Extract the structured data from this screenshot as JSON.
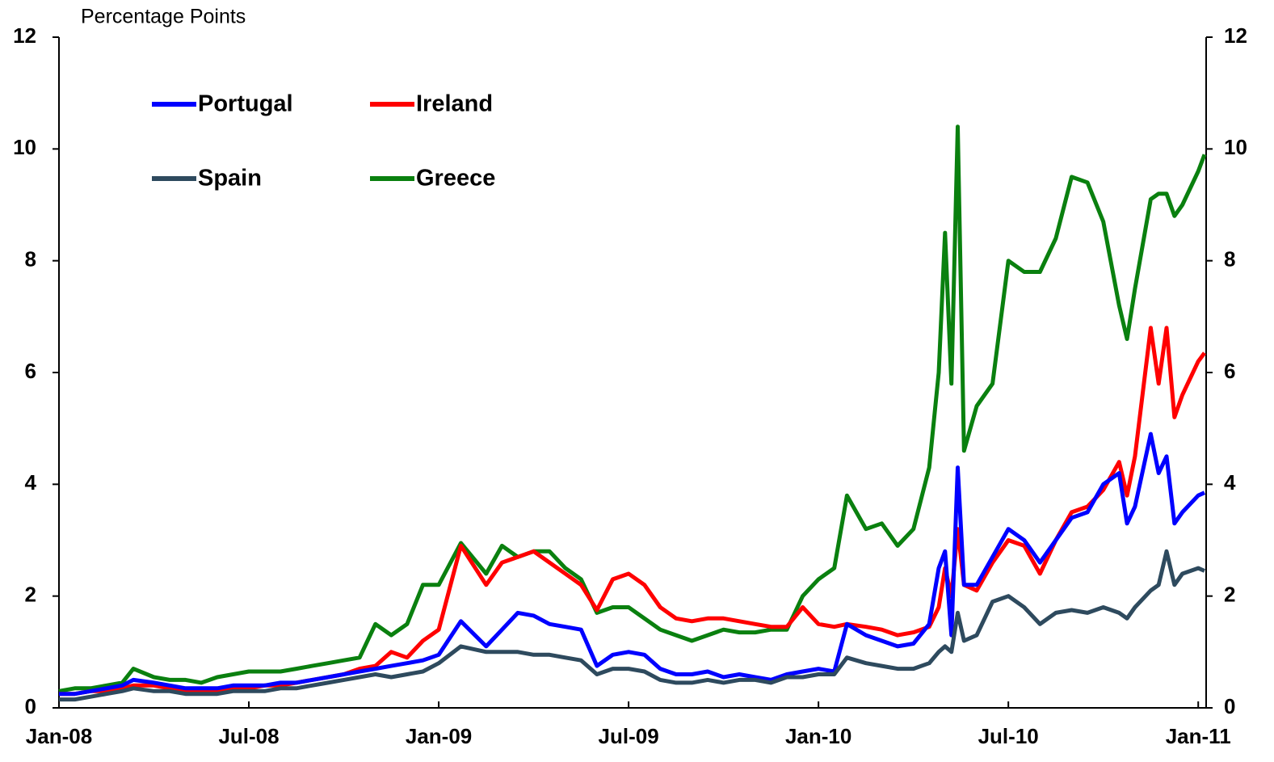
{
  "chart_data": {
    "type": "line",
    "ylabel": "Percentage Points",
    "x": [
      0,
      0.5,
      1,
      1.5,
      2,
      2.35,
      3,
      3.5,
      4,
      4.5,
      5,
      5.5,
      6,
      6.5,
      7,
      7.5,
      8,
      8.5,
      9,
      9.5,
      10,
      10.5,
      11,
      11.5,
      12,
      12.7,
      13.5,
      14,
      14.5,
      15,
      15.5,
      16,
      16.5,
      17,
      17.5,
      18,
      18.5,
      19,
      19.5,
      20,
      20.5,
      21,
      21.5,
      22,
      22.5,
      23,
      23.5,
      24,
      24.5,
      24.9,
      25.5,
      26,
      26.5,
      27,
      27.5,
      27.8,
      28,
      28.2,
      28.4,
      28.6,
      29,
      29.5,
      30,
      30.5,
      31,
      31.5,
      32,
      32.5,
      33,
      33.5,
      33.75,
      34,
      34.5,
      34.75,
      35,
      35.25,
      35.5,
      36,
      36.2
    ],
    "xlim": [
      0,
      36.25
    ],
    "xticks": [
      {
        "value": 0,
        "label": "Jan-08"
      },
      {
        "value": 6,
        "label": "Jul-08"
      },
      {
        "value": 12,
        "label": "Jan-09"
      },
      {
        "value": 18,
        "label": "Jul-09"
      },
      {
        "value": 24,
        "label": "Jan-10"
      },
      {
        "value": 30,
        "label": "Jul-10"
      },
      {
        "value": 36,
        "label": "Jan-11"
      }
    ],
    "ylim": [
      0,
      12
    ],
    "yticks": [
      0,
      2,
      4,
      6,
      8,
      10,
      12
    ],
    "y2lim": [
      0,
      12
    ],
    "y2ticks": [
      0,
      2,
      4,
      6,
      8,
      10,
      12
    ],
    "grid": false,
    "legend": "upper left",
    "series": [
      {
        "name": "Portugal",
        "color": "#0000ff",
        "values": [
          0.25,
          0.25,
          0.3,
          0.35,
          0.4,
          0.5,
          0.45,
          0.4,
          0.35,
          0.35,
          0.35,
          0.4,
          0.4,
          0.4,
          0.45,
          0.45,
          0.5,
          0.55,
          0.6,
          0.65,
          0.7,
          0.75,
          0.8,
          0.85,
          0.95,
          1.55,
          1.1,
          1.4,
          1.7,
          1.65,
          1.5,
          1.45,
          1.4,
          0.75,
          0.95,
          1.0,
          0.95,
          0.7,
          0.6,
          0.6,
          0.65,
          0.55,
          0.6,
          0.55,
          0.5,
          0.6,
          0.65,
          0.7,
          0.65,
          1.5,
          1.3,
          1.2,
          1.1,
          1.15,
          1.5,
          2.5,
          2.8,
          1.3,
          4.3,
          2.2,
          2.2,
          2.7,
          3.2,
          3.0,
          2.6,
          3.0,
          3.4,
          3.5,
          4.0,
          4.2,
          3.3,
          3.6,
          4.9,
          4.2,
          4.5,
          3.3,
          3.5,
          3.8,
          3.85
        ]
      },
      {
        "name": "Ireland",
        "color": "#ff0000",
        "values": [
          0.25,
          0.25,
          0.3,
          0.3,
          0.35,
          0.4,
          0.4,
          0.35,
          0.3,
          0.3,
          0.3,
          0.35,
          0.35,
          0.4,
          0.4,
          0.45,
          0.5,
          0.55,
          0.6,
          0.7,
          0.75,
          1.0,
          0.9,
          1.2,
          1.4,
          2.9,
          2.2,
          2.6,
          2.7,
          2.8,
          2.6,
          2.4,
          2.2,
          1.75,
          2.3,
          2.4,
          2.2,
          1.8,
          1.6,
          1.55,
          1.6,
          1.6,
          1.55,
          1.5,
          1.45,
          1.45,
          1.8,
          1.5,
          1.45,
          1.5,
          1.45,
          1.4,
          1.3,
          1.35,
          1.45,
          1.8,
          2.5,
          2.0,
          3.2,
          2.2,
          2.1,
          2.6,
          3.0,
          2.9,
          2.4,
          3.0,
          3.5,
          3.6,
          3.9,
          4.4,
          3.8,
          4.5,
          6.8,
          5.8,
          6.8,
          5.2,
          5.6,
          6.2,
          6.35
        ]
      },
      {
        "name": "Spain",
        "color": "#2e4a5e",
        "values": [
          0.15,
          0.15,
          0.2,
          0.25,
          0.3,
          0.35,
          0.3,
          0.3,
          0.25,
          0.25,
          0.25,
          0.3,
          0.3,
          0.3,
          0.35,
          0.35,
          0.4,
          0.45,
          0.5,
          0.55,
          0.6,
          0.55,
          0.6,
          0.65,
          0.8,
          1.1,
          1.0,
          1.0,
          1.0,
          0.95,
          0.95,
          0.9,
          0.85,
          0.6,
          0.7,
          0.7,
          0.65,
          0.5,
          0.45,
          0.45,
          0.5,
          0.45,
          0.5,
          0.5,
          0.45,
          0.55,
          0.55,
          0.6,
          0.6,
          0.9,
          0.8,
          0.75,
          0.7,
          0.7,
          0.8,
          1.0,
          1.1,
          1.0,
          1.7,
          1.2,
          1.3,
          1.9,
          2.0,
          1.8,
          1.5,
          1.7,
          1.75,
          1.7,
          1.8,
          1.7,
          1.6,
          1.8,
          2.1,
          2.2,
          2.8,
          2.2,
          2.4,
          2.5,
          2.45
        ]
      },
      {
        "name": "Greece",
        "color": "#0a800f",
        "values": [
          0.3,
          0.35,
          0.35,
          0.4,
          0.45,
          0.7,
          0.55,
          0.5,
          0.5,
          0.45,
          0.55,
          0.6,
          0.65,
          0.65,
          0.65,
          0.7,
          0.75,
          0.8,
          0.85,
          0.9,
          1.5,
          1.3,
          1.5,
          2.2,
          2.2,
          2.95,
          2.4,
          2.9,
          2.7,
          2.8,
          2.8,
          2.5,
          2.3,
          1.7,
          1.8,
          1.8,
          1.6,
          1.4,
          1.3,
          1.2,
          1.3,
          1.4,
          1.35,
          1.35,
          1.4,
          1.4,
          2.0,
          2.3,
          2.5,
          3.8,
          3.2,
          3.3,
          2.9,
          3.2,
          4.3,
          6.0,
          8.5,
          5.8,
          10.4,
          4.6,
          5.4,
          5.8,
          8.0,
          7.8,
          7.8,
          8.4,
          9.5,
          9.4,
          8.7,
          7.2,
          6.6,
          7.5,
          9.1,
          9.2,
          9.2,
          8.8,
          9.0,
          9.6,
          9.9
        ]
      }
    ]
  }
}
